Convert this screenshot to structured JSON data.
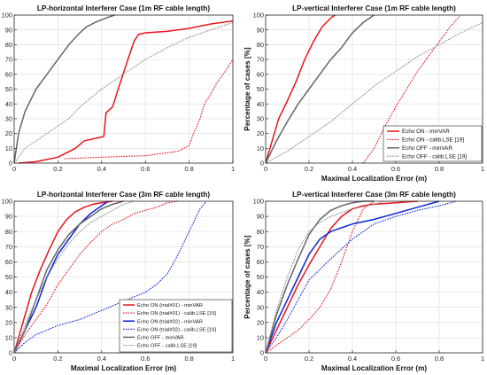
{
  "chart_data": [
    {
      "type": "line",
      "title": "LP-horizontal Interferer Case (1m RF cable length)",
      "xlabel": "",
      "ylabel": "",
      "xlim": [
        0,
        1
      ],
      "ylim": [
        0,
        100
      ],
      "xticks": [
        "0",
        "0.2",
        "0.4",
        "0.6",
        "0.8",
        "1"
      ],
      "yticks": [
        "0",
        "10",
        "20",
        "30",
        "40",
        "50",
        "60",
        "70",
        "80",
        "90",
        "100"
      ],
      "grid": true,
      "legend": null,
      "series": [
        {
          "color": "#e8141a",
          "dash": "solid",
          "x": [
            0.02,
            0.1,
            0.2,
            0.28,
            0.32,
            0.38,
            0.41,
            0.42,
            0.45,
            0.48,
            0.52,
            0.55,
            0.57,
            0.6,
            0.7,
            0.8,
            0.9,
            1.0
          ],
          "y": [
            0,
            1,
            4,
            10,
            15,
            17,
            18,
            34,
            38,
            52,
            70,
            83,
            87,
            88,
            89,
            91,
            94,
            96
          ]
        },
        {
          "color": "#e8141a",
          "dash": "dotted",
          "x": [
            0.23,
            0.4,
            0.6,
            0.75,
            0.8,
            0.82,
            0.85,
            0.87,
            0.9,
            0.93,
            0.97,
            1.0
          ],
          "y": [
            3,
            4,
            5,
            8,
            12,
            20,
            30,
            40,
            47,
            55,
            63,
            70
          ]
        },
        {
          "color": "#666666",
          "dash": "solid",
          "x": [
            0.0,
            0.02,
            0.05,
            0.1,
            0.15,
            0.2,
            0.25,
            0.3,
            0.33,
            0.37,
            0.42,
            0.46
          ],
          "y": [
            0,
            20,
            35,
            50,
            60,
            70,
            80,
            88,
            92,
            95,
            98,
            100
          ]
        },
        {
          "color": "#888888",
          "dash": "dotted",
          "x": [
            0.0,
            0.05,
            0.1,
            0.15,
            0.2,
            0.25,
            0.3,
            0.4,
            0.5,
            0.6,
            0.7,
            0.8,
            0.9,
            1.0
          ],
          "y": [
            0,
            10,
            15,
            20,
            25,
            30,
            38,
            50,
            60,
            70,
            78,
            85,
            90,
            95
          ]
        }
      ]
    },
    {
      "type": "line",
      "title": "LP-vertical Interferer Case (1m RF cable length)",
      "xlabel": "Maximal Localization Error (m)",
      "ylabel": "Percentage of cases [%]",
      "xlim": [
        0,
        1
      ],
      "ylim": [
        0,
        100
      ],
      "xticks": [
        "0",
        "0.2",
        "0.4",
        "0.6",
        "0.8",
        "1"
      ],
      "yticks": [
        "0",
        "10",
        "20",
        "30",
        "40",
        "50",
        "60",
        "70",
        "80",
        "90",
        "100"
      ],
      "grid": true,
      "legend": {
        "position": "bottom-right",
        "entries": [
          "Echo ON - minVAR",
          "Echo ON - calib.LSE [19]",
          "Echo OFF - minVAR",
          "Echo OFF - calib.LSE [19]"
        ]
      },
      "series": [
        {
          "name": "Echo ON - minVAR",
          "color": "#e8141a",
          "dash": "solid",
          "x": [
            0.0,
            0.03,
            0.06,
            0.1,
            0.14,
            0.18,
            0.22,
            0.26,
            0.3,
            0.32
          ],
          "y": [
            0,
            15,
            30,
            42,
            55,
            70,
            82,
            92,
            98,
            100
          ]
        },
        {
          "name": "Echo ON - calib.LSE [19]",
          "color": "#e8141a",
          "dash": "dotted",
          "x": [
            0.45,
            0.5,
            0.55,
            0.6,
            0.65,
            0.7,
            0.75,
            0.8,
            0.85,
            0.9
          ],
          "y": [
            0,
            10,
            25,
            38,
            50,
            62,
            72,
            82,
            92,
            100
          ]
        },
        {
          "name": "Echo OFF - minVAR",
          "color": "#666666",
          "dash": "solid",
          "x": [
            0.0,
            0.05,
            0.1,
            0.15,
            0.2,
            0.25,
            0.3,
            0.35,
            0.4,
            0.45,
            0.5
          ],
          "y": [
            0,
            15,
            28,
            40,
            50,
            60,
            70,
            78,
            88,
            95,
            100
          ]
        },
        {
          "name": "Echo OFF - calib.LSE [19]",
          "color": "#888888",
          "dash": "dotted",
          "x": [
            0.0,
            0.1,
            0.2,
            0.3,
            0.4,
            0.5,
            0.6,
            0.7,
            0.8,
            0.9,
            1.0
          ],
          "y": [
            0,
            8,
            18,
            28,
            40,
            52,
            62,
            72,
            80,
            88,
            95
          ]
        }
      ]
    },
    {
      "type": "line",
      "title": "LP-horizontal Interferer Case (3m RF cable length)",
      "xlabel": "Maximal Localization Error (m)",
      "ylabel": "",
      "xlim": [
        0,
        1
      ],
      "ylim": [
        0,
        100
      ],
      "xticks": [
        "0",
        "0.2",
        "0.4",
        "0.6",
        "0.8",
        "1"
      ],
      "yticks": [
        "0",
        "10",
        "20",
        "30",
        "40",
        "50",
        "60",
        "70",
        "80",
        "90",
        "100"
      ],
      "grid": true,
      "legend": {
        "position": "bottom-right",
        "entries": [
          "Echo ON (trial#01) - minVAR",
          "Echo ON (trial#01) - calib.LSE [19]",
          "Echo ON (trial#02) - minVAR",
          "Echo ON (trial#02) - calib.LSE [19]",
          "Echo OFF - minVAR",
          "Echo OFF - calib.LSE [19]"
        ]
      },
      "series": [
        {
          "name": "Echo ON (trial#01) - minVAR",
          "color": "#e8141a",
          "dash": "solid",
          "x": [
            0.0,
            0.04,
            0.08,
            0.12,
            0.16,
            0.2,
            0.24,
            0.28,
            0.32,
            0.36,
            0.4,
            0.45
          ],
          "y": [
            0,
            20,
            40,
            55,
            68,
            80,
            88,
            93,
            96,
            98,
            99,
            100
          ]
        },
        {
          "name": "Echo ON (trial#01) - calib.LSE [19]",
          "color": "#e8141a",
          "dash": "dotted",
          "x": [
            0.0,
            0.05,
            0.1,
            0.15,
            0.2,
            0.25,
            0.3,
            0.35,
            0.4,
            0.45,
            0.5,
            0.55,
            0.6,
            0.65,
            0.7,
            0.75
          ],
          "y": [
            0,
            12,
            22,
            32,
            45,
            55,
            65,
            73,
            80,
            85,
            88,
            92,
            94,
            96,
            99,
            100
          ]
        },
        {
          "name": "Echo ON (trial#02) - minVAR",
          "color": "#0b24d6",
          "dash": "solid",
          "x": [
            0.0,
            0.05,
            0.1,
            0.15,
            0.2,
            0.25,
            0.3,
            0.35,
            0.4,
            0.43
          ],
          "y": [
            0,
            15,
            30,
            50,
            65,
            75,
            85,
            92,
            97,
            100
          ]
        },
        {
          "name": "Echo ON (trial#02) - calib.LSE [19]",
          "color": "#0b24d6",
          "dash": "dotted",
          "x": [
            0.0,
            0.05,
            0.1,
            0.15,
            0.2,
            0.3,
            0.4,
            0.5,
            0.6,
            0.65,
            0.7,
            0.75,
            0.8,
            0.85,
            0.88
          ],
          "y": [
            0,
            7,
            12,
            15,
            18,
            22,
            28,
            34,
            40,
            45,
            52,
            65,
            80,
            95,
            100
          ]
        },
        {
          "name": "Echo OFF - minVAR",
          "color": "#666666",
          "dash": "solid",
          "x": [
            0.0,
            0.05,
            0.1,
            0.15,
            0.2,
            0.25,
            0.3,
            0.35,
            0.4,
            0.45,
            0.5
          ],
          "y": [
            0,
            15,
            35,
            55,
            68,
            78,
            85,
            90,
            95,
            98,
            100
          ]
        },
        {
          "name": "Echo OFF - calib.LSE [19]",
          "color": "#888888",
          "dash": "dotted",
          "x": [
            0.0,
            0.05,
            0.1,
            0.15,
            0.2,
            0.25,
            0.3,
            0.35,
            0.4,
            0.45,
            0.5,
            0.55
          ],
          "y": [
            0,
            18,
            35,
            50,
            62,
            72,
            80,
            86,
            90,
            94,
            98,
            100
          ]
        }
      ]
    },
    {
      "type": "line",
      "title": "LP-vertical Interferer Case (3m RF cable length)",
      "xlabel": "Maximal Localization Error (m)",
      "ylabel": "Percentage of cases [%]",
      "xlim": [
        0,
        1
      ],
      "ylim": [
        0,
        100
      ],
      "xticks": [
        "0",
        "0.2",
        "0.4",
        "0.6",
        "0.8",
        "1"
      ],
      "yticks": [
        "0",
        "10",
        "20",
        "30",
        "40",
        "50",
        "60",
        "70",
        "80",
        "90",
        "100"
      ],
      "grid": true,
      "legend": null,
      "series": [
        {
          "color": "#e8141a",
          "dash": "solid",
          "x": [
            0.0,
            0.05,
            0.1,
            0.15,
            0.2,
            0.25,
            0.3,
            0.35,
            0.4,
            0.45,
            0.5,
            0.6,
            0.7
          ],
          "y": [
            0,
            15,
            30,
            45,
            58,
            70,
            82,
            90,
            95,
            97,
            98,
            99,
            100
          ]
        },
        {
          "color": "#e8141a",
          "dash": "dotted",
          "x": [
            0.0,
            0.05,
            0.1,
            0.15,
            0.2,
            0.25,
            0.3,
            0.35,
            0.4,
            0.45,
            0.5
          ],
          "y": [
            0,
            5,
            10,
            15,
            22,
            30,
            42,
            60,
            80,
            95,
            100
          ]
        },
        {
          "color": "#0b24d6",
          "dash": "solid",
          "x": [
            0.0,
            0.05,
            0.1,
            0.15,
            0.2,
            0.25,
            0.3,
            0.4,
            0.5,
            0.6,
            0.7,
            0.8
          ],
          "y": [
            0,
            20,
            35,
            50,
            65,
            75,
            80,
            85,
            88,
            92,
            96,
            100
          ]
        },
        {
          "color": "#0b24d6",
          "dash": "dotted",
          "x": [
            0.0,
            0.05,
            0.1,
            0.15,
            0.2,
            0.3,
            0.4,
            0.5,
            0.6,
            0.7,
            0.8,
            0.88
          ],
          "y": [
            0,
            10,
            22,
            35,
            48,
            62,
            75,
            85,
            90,
            94,
            97,
            100
          ]
        },
        {
          "color": "#666666",
          "dash": "solid",
          "x": [
            0.0,
            0.05,
            0.1,
            0.15,
            0.2,
            0.25,
            0.3,
            0.35,
            0.4,
            0.45,
            0.5
          ],
          "y": [
            0,
            25,
            45,
            62,
            78,
            88,
            94,
            97,
            99,
            100,
            100
          ]
        },
        {
          "color": "#888888",
          "dash": "dotted",
          "x": [
            0.0,
            0.05,
            0.1,
            0.15,
            0.2,
            0.25,
            0.3,
            0.4,
            0.5,
            0.55
          ],
          "y": [
            0,
            28,
            50,
            68,
            80,
            86,
            90,
            95,
            98,
            100
          ]
        }
      ]
    }
  ]
}
